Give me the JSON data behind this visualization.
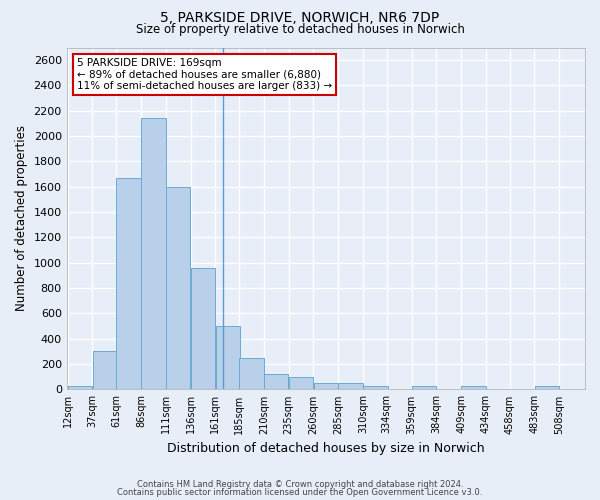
{
  "title_line1": "5, PARKSIDE DRIVE, NORWICH, NR6 7DP",
  "title_line2": "Size of property relative to detached houses in Norwich",
  "xlabel": "Distribution of detached houses by size in Norwich",
  "ylabel": "Number of detached properties",
  "annotation_title": "5 PARKSIDE DRIVE: 169sqm",
  "annotation_line2": "← 89% of detached houses are smaller (6,880)",
  "annotation_line3": "11% of semi-detached houses are larger (833) →",
  "property_size": 169,
  "footer_line1": "Contains HM Land Registry data © Crown copyright and database right 2024.",
  "footer_line2": "Contains public sector information licensed under the Open Government Licence v3.0.",
  "bar_color": "#b8d0ea",
  "bar_edge_color": "#6aaad4",
  "vline_color": "#5b9bd5",
  "annotation_box_color": "#ffffff",
  "annotation_box_edge": "#cc0000",
  "background_color": "#e8eef8",
  "grid_color": "#ffffff",
  "bins": [
    12,
    37,
    61,
    86,
    111,
    136,
    161,
    185,
    210,
    235,
    260,
    285,
    310,
    334,
    359,
    384,
    409,
    434,
    458,
    483,
    508
  ],
  "values": [
    25,
    300,
    1670,
    2140,
    1595,
    960,
    500,
    250,
    120,
    100,
    50,
    50,
    30,
    0,
    30,
    0,
    30,
    0,
    0,
    25,
    0
  ],
  "bin_width": 25,
  "ylim": [
    0,
    2700
  ],
  "yticks": [
    0,
    200,
    400,
    600,
    800,
    1000,
    1200,
    1400,
    1600,
    1800,
    2000,
    2200,
    2400,
    2600
  ]
}
